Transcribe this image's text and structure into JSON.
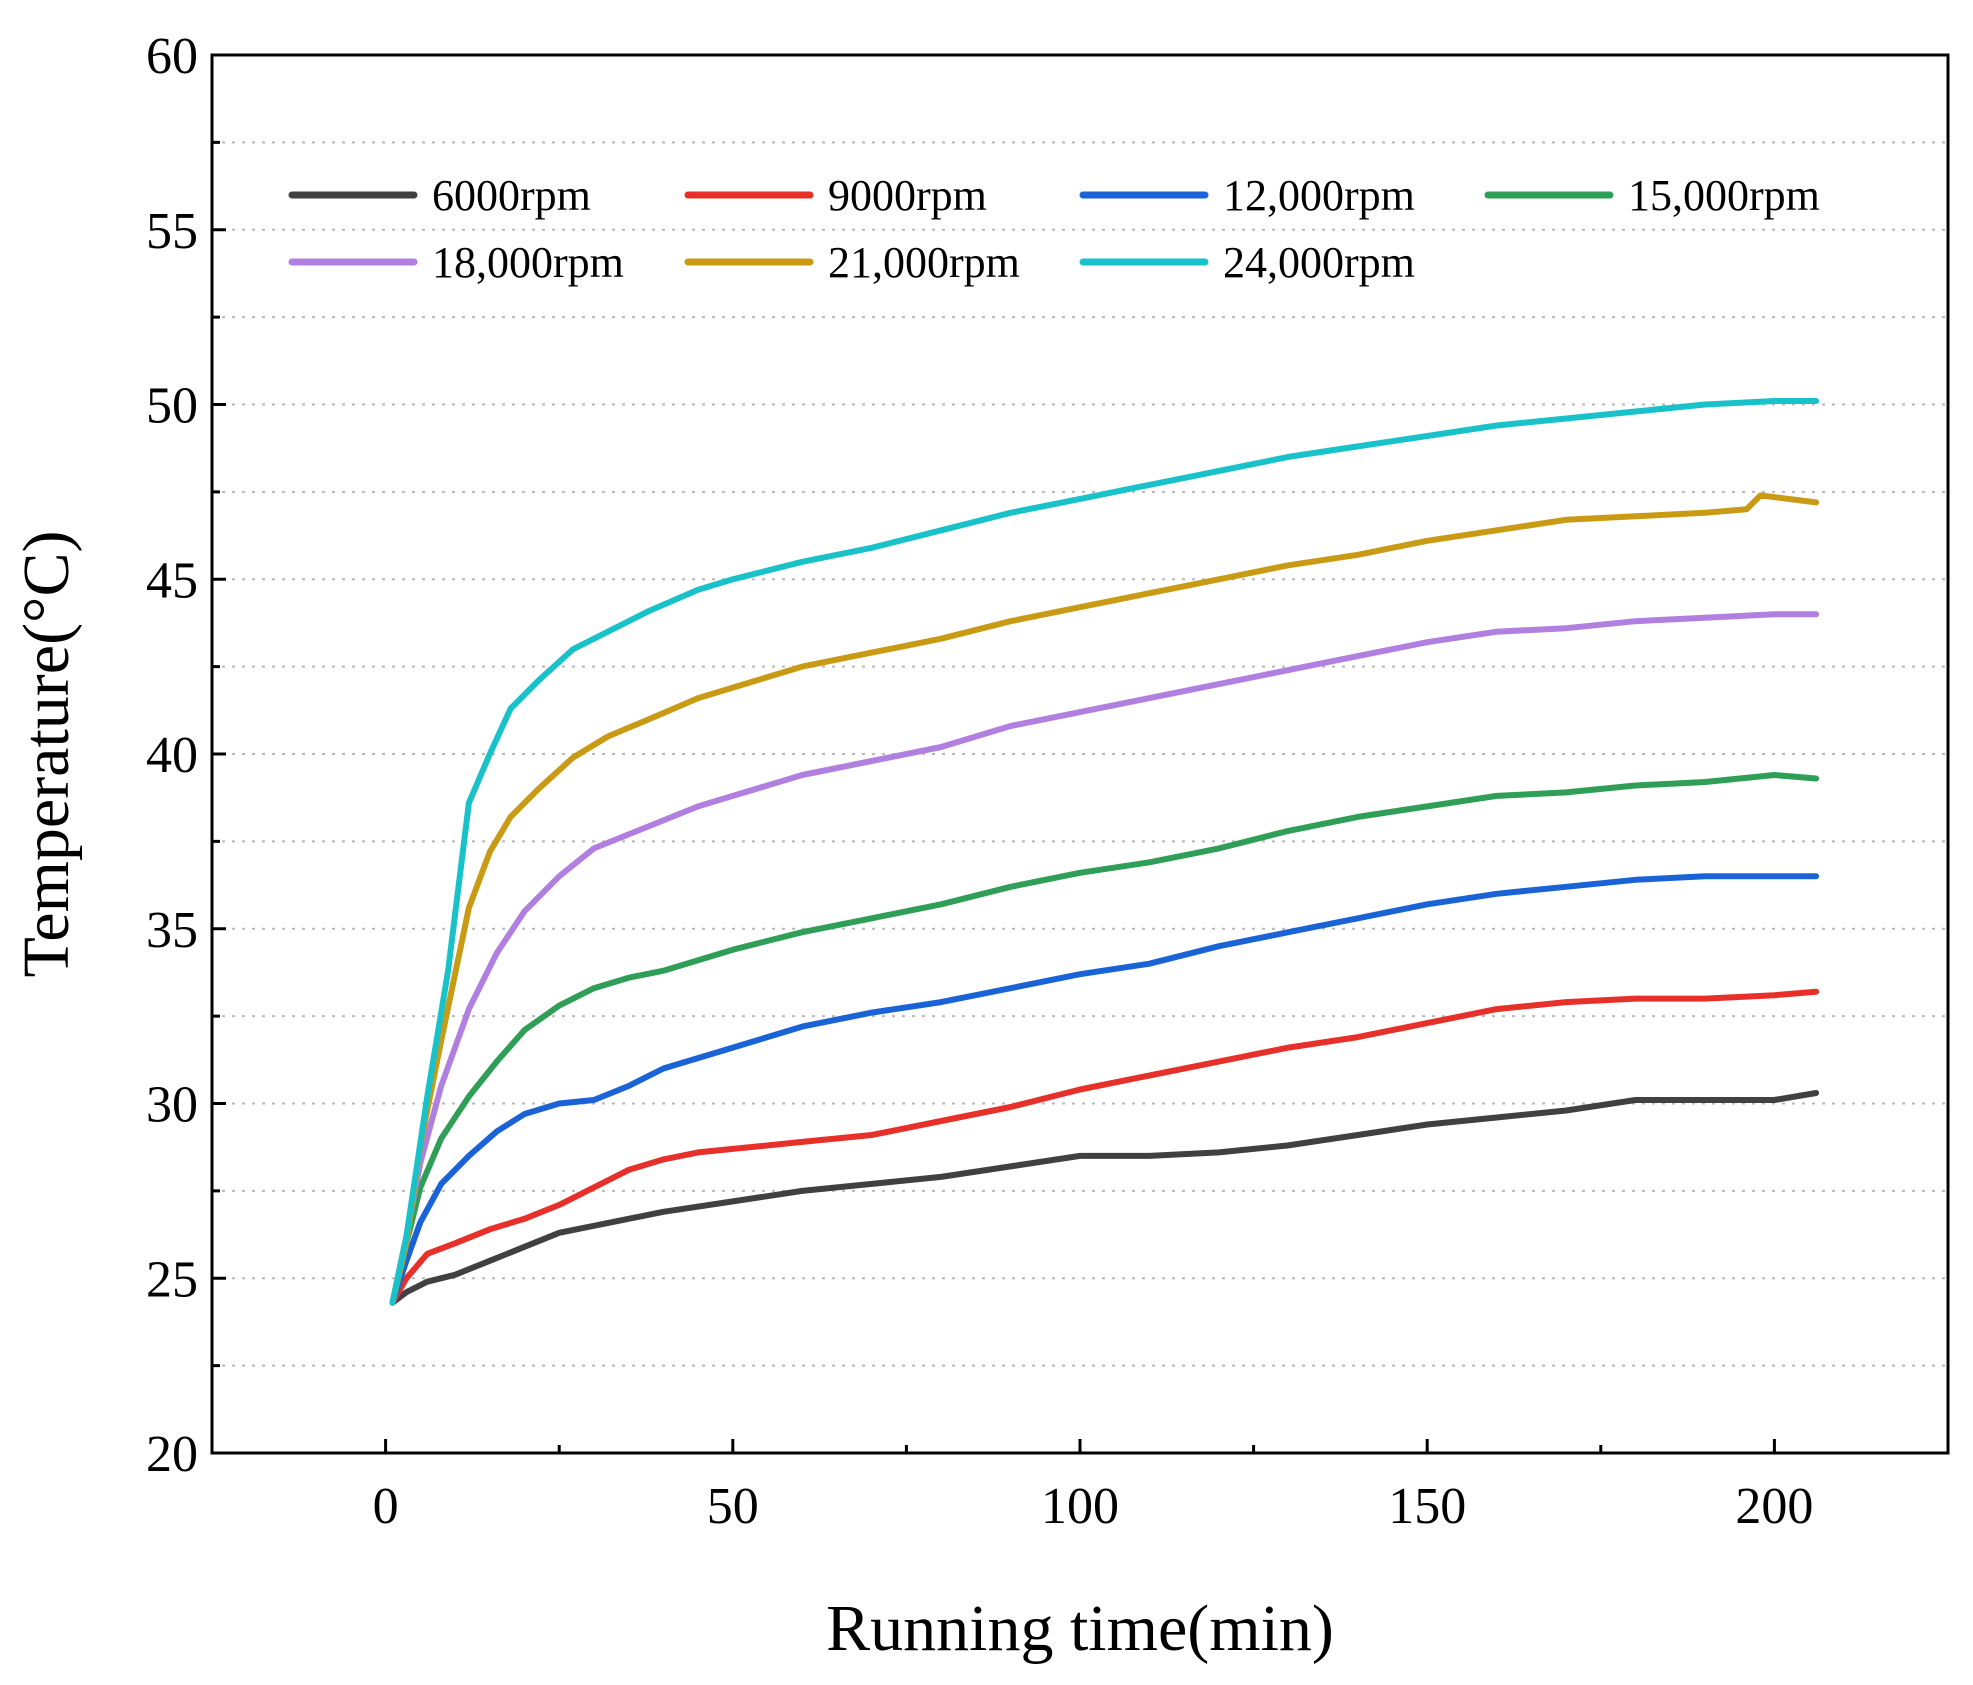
{
  "chart_data": {
    "type": "line",
    "title": "",
    "xlabel": "Running time(min)",
    "ylabel": "Temperature(°C)",
    "xlim": [
      -25,
      225
    ],
    "ylim": [
      20,
      60
    ],
    "xticks": [
      0,
      50,
      100,
      150,
      200
    ],
    "yticks": [
      20,
      25,
      30,
      35,
      40,
      45,
      50,
      55,
      60
    ],
    "grid": "horizontal-dotted",
    "legend": {
      "position": "top-left",
      "columns": 4
    },
    "series": [
      {
        "name": "6000rpm",
        "color": "#404040",
        "x": [
          1,
          3,
          6,
          10,
          15,
          20,
          25,
          30,
          40,
          50,
          60,
          70,
          80,
          90,
          100,
          110,
          120,
          130,
          140,
          150,
          160,
          170,
          180,
          190,
          200,
          206
        ],
        "y": [
          24.3,
          24.6,
          24.9,
          25.1,
          25.5,
          25.9,
          26.3,
          26.5,
          26.9,
          27.2,
          27.5,
          27.7,
          27.9,
          28.2,
          28.5,
          28.5,
          28.6,
          28.8,
          29.1,
          29.4,
          29.6,
          29.8,
          30.1,
          30.1,
          30.1,
          30.3
        ]
      },
      {
        "name": "9000rpm",
        "color": "#e8302b",
        "x": [
          1,
          3,
          6,
          10,
          15,
          20,
          25,
          30,
          35,
          40,
          45,
          50,
          60,
          70,
          80,
          90,
          100,
          110,
          120,
          130,
          140,
          150,
          160,
          170,
          180,
          190,
          200,
          206
        ],
        "y": [
          24.3,
          25.0,
          25.7,
          26.0,
          26.4,
          26.7,
          27.1,
          27.6,
          28.1,
          28.4,
          28.6,
          28.7,
          28.9,
          29.1,
          29.5,
          29.9,
          30.4,
          30.8,
          31.2,
          31.6,
          31.9,
          32.3,
          32.7,
          32.9,
          33.0,
          33.0,
          33.1,
          33.2
        ]
      },
      {
        "name": "12,000rpm",
        "color": "#1a63d6",
        "x": [
          1,
          3,
          5,
          8,
          12,
          16,
          20,
          25,
          30,
          35,
          40,
          50,
          60,
          70,
          80,
          90,
          100,
          110,
          120,
          130,
          140,
          150,
          160,
          170,
          180,
          190,
          200,
          206
        ],
        "y": [
          24.3,
          25.5,
          26.6,
          27.7,
          28.5,
          29.2,
          29.7,
          30.0,
          30.1,
          30.5,
          31.0,
          31.6,
          32.2,
          32.6,
          32.9,
          33.3,
          33.7,
          34.0,
          34.5,
          34.9,
          35.3,
          35.7,
          36.0,
          36.2,
          36.4,
          36.5,
          36.5,
          36.5
        ]
      },
      {
        "name": "15,000rpm",
        "color": "#2f9e57",
        "x": [
          1,
          3,
          5,
          8,
          12,
          16,
          20,
          25,
          30,
          35,
          40,
          50,
          60,
          70,
          80,
          90,
          100,
          110,
          120,
          130,
          140,
          150,
          160,
          170,
          180,
          190,
          200,
          206
        ],
        "y": [
          24.3,
          26.0,
          27.6,
          29.0,
          30.2,
          31.2,
          32.1,
          32.8,
          33.3,
          33.6,
          33.8,
          34.4,
          34.9,
          35.3,
          35.7,
          36.2,
          36.6,
          36.9,
          37.3,
          37.8,
          38.2,
          38.5,
          38.8,
          38.9,
          39.1,
          39.2,
          39.4,
          39.3
        ]
      },
      {
        "name": "18,000rpm",
        "color": "#b07fe0",
        "x": [
          1,
          3,
          5,
          8,
          12,
          16,
          20,
          25,
          30,
          35,
          40,
          45,
          50,
          60,
          70,
          80,
          90,
          100,
          110,
          120,
          130,
          140,
          150,
          160,
          170,
          180,
          190,
          200,
          206
        ],
        "y": [
          24.3,
          26.2,
          28.3,
          30.5,
          32.7,
          34.3,
          35.5,
          36.5,
          37.3,
          37.7,
          38.1,
          38.5,
          38.8,
          39.4,
          39.8,
          40.2,
          40.8,
          41.2,
          41.6,
          42.0,
          42.4,
          42.8,
          43.2,
          43.5,
          43.6,
          43.8,
          43.9,
          44.0,
          44.0
        ]
      },
      {
        "name": "21,000rpm",
        "color": "#c99a14",
        "x": [
          1,
          3,
          5,
          8,
          12,
          15,
          18,
          22,
          27,
          32,
          38,
          45,
          50,
          60,
          70,
          80,
          90,
          100,
          110,
          120,
          130,
          140,
          150,
          160,
          170,
          180,
          190,
          196,
          198,
          206
        ],
        "y": [
          24.3,
          26.0,
          28.8,
          31.8,
          35.6,
          37.2,
          38.2,
          39.0,
          39.9,
          40.5,
          41.0,
          41.6,
          41.9,
          42.5,
          42.9,
          43.3,
          43.8,
          44.2,
          44.6,
          45.0,
          45.4,
          45.7,
          46.1,
          46.4,
          46.7,
          46.8,
          46.9,
          47.0,
          47.4,
          47.2
        ]
      },
      {
        "name": "24,000rpm",
        "color": "#18c2c8",
        "x": [
          1,
          3,
          6,
          9,
          12,
          15,
          18,
          22,
          27,
          32,
          38,
          45,
          50,
          60,
          70,
          80,
          90,
          100,
          110,
          120,
          130,
          140,
          150,
          160,
          170,
          180,
          190,
          200,
          206
        ],
        "y": [
          24.3,
          26.2,
          30.2,
          33.8,
          38.6,
          40.0,
          41.3,
          42.1,
          43.0,
          43.5,
          44.1,
          44.7,
          45.0,
          45.5,
          45.9,
          46.4,
          46.9,
          47.3,
          47.7,
          48.1,
          48.5,
          48.8,
          49.1,
          49.4,
          49.6,
          49.8,
          50.0,
          50.1,
          50.1
        ]
      }
    ]
  }
}
